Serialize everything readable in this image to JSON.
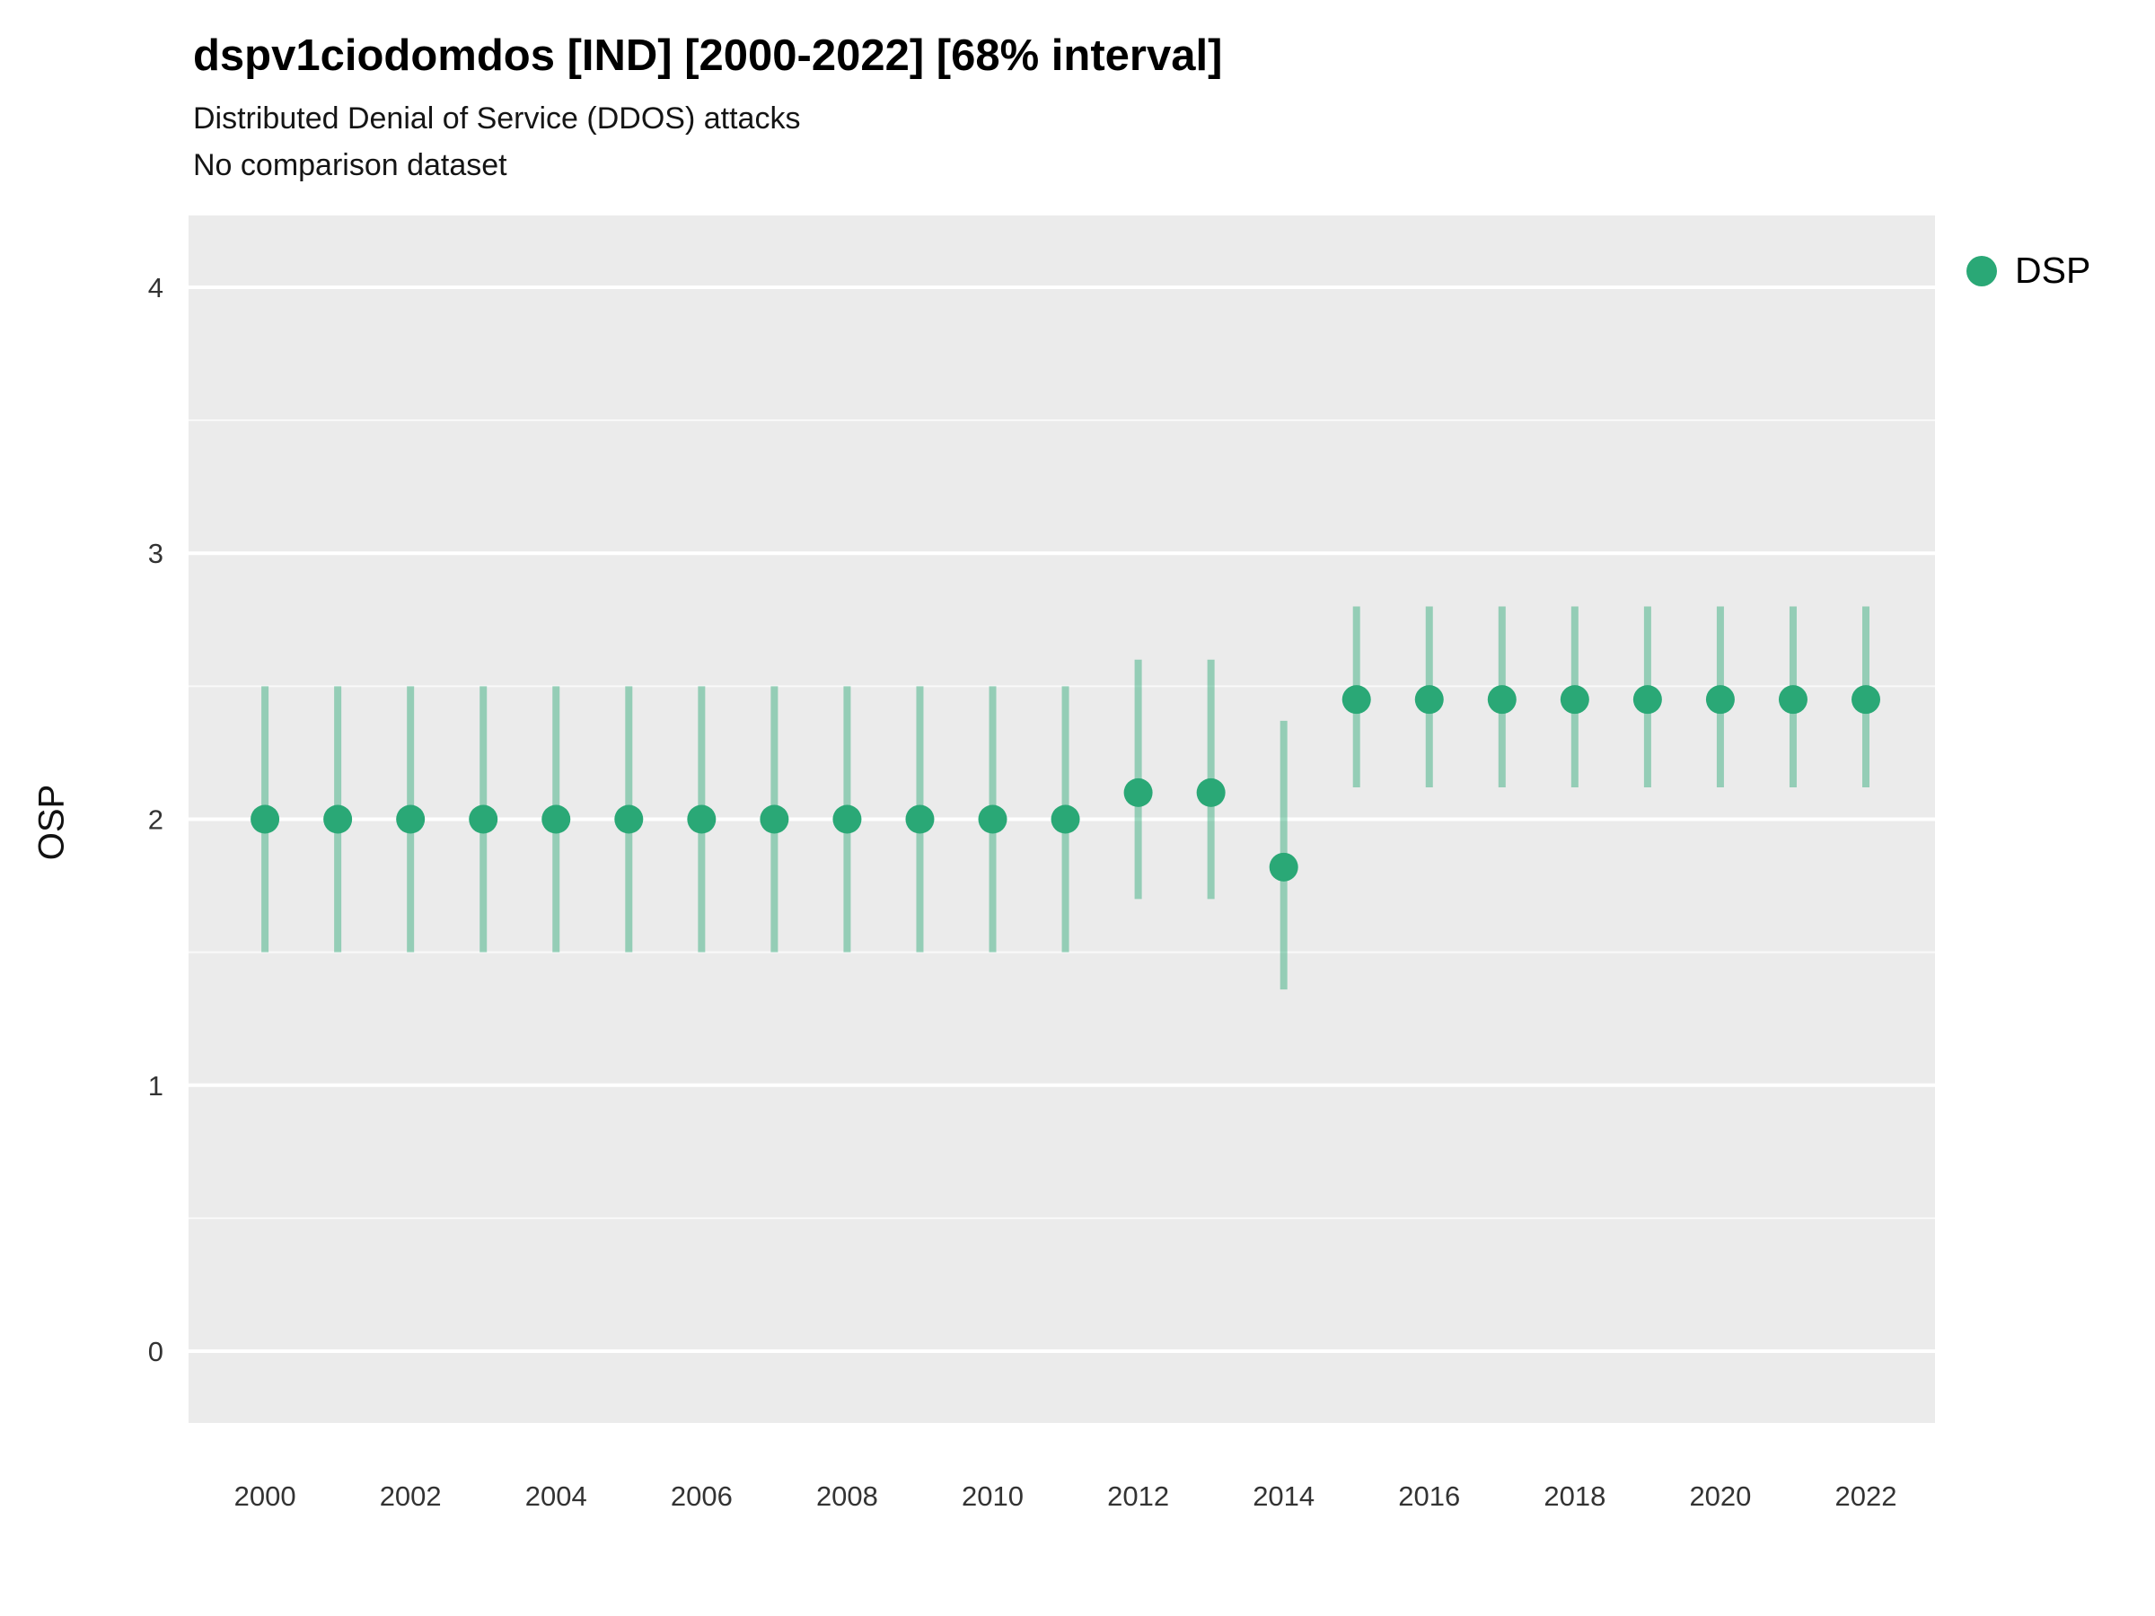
{
  "chart_data": {
    "type": "scatter",
    "title": "dspv1ciodomdos [IND] [2000-2022] [68% interval]",
    "subtitle": "Distributed Denial of Service (DDOS) attacks",
    "note": "No comparison dataset",
    "xlabel": "",
    "ylabel": "OSP",
    "interval": "68%",
    "legend_position": "right",
    "grid": "horizontal-major-and-minor-white",
    "panel_bg": "#ebebeb",
    "grid_color": "#ffffff",
    "tick_label_color": "#333333",
    "xlim": [
      1998.95,
      2022.95
    ],
    "ylim": [
      -0.27,
      4.27
    ],
    "x_ticks": [
      2000,
      2002,
      2004,
      2006,
      2008,
      2010,
      2012,
      2014,
      2016,
      2018,
      2020,
      2022
    ],
    "y_ticks": [
      0,
      1,
      2,
      3,
      4
    ],
    "series": [
      {
        "name": "DSP",
        "color": "#2aa876",
        "interval_opacity": 0.45,
        "points": [
          {
            "x": 2000,
            "y": 2.0,
            "lo": 1.5,
            "hi": 2.5
          },
          {
            "x": 2001,
            "y": 2.0,
            "lo": 1.5,
            "hi": 2.5
          },
          {
            "x": 2002,
            "y": 2.0,
            "lo": 1.5,
            "hi": 2.5
          },
          {
            "x": 2003,
            "y": 2.0,
            "lo": 1.5,
            "hi": 2.5
          },
          {
            "x": 2004,
            "y": 2.0,
            "lo": 1.5,
            "hi": 2.5
          },
          {
            "x": 2005,
            "y": 2.0,
            "lo": 1.5,
            "hi": 2.5
          },
          {
            "x": 2006,
            "y": 2.0,
            "lo": 1.5,
            "hi": 2.5
          },
          {
            "x": 2007,
            "y": 2.0,
            "lo": 1.5,
            "hi": 2.5
          },
          {
            "x": 2008,
            "y": 2.0,
            "lo": 1.5,
            "hi": 2.5
          },
          {
            "x": 2009,
            "y": 2.0,
            "lo": 1.5,
            "hi": 2.5
          },
          {
            "x": 2010,
            "y": 2.0,
            "lo": 1.5,
            "hi": 2.5
          },
          {
            "x": 2011,
            "y": 2.0,
            "lo": 1.5,
            "hi": 2.5
          },
          {
            "x": 2012,
            "y": 2.1,
            "lo": 1.7,
            "hi": 2.6
          },
          {
            "x": 2013,
            "y": 2.1,
            "lo": 1.7,
            "hi": 2.6
          },
          {
            "x": 2014,
            "y": 1.82,
            "lo": 1.36,
            "hi": 2.37
          },
          {
            "x": 2015,
            "y": 2.45,
            "lo": 2.12,
            "hi": 2.8
          },
          {
            "x": 2016,
            "y": 2.45,
            "lo": 2.12,
            "hi": 2.8
          },
          {
            "x": 2017,
            "y": 2.45,
            "lo": 2.12,
            "hi": 2.8
          },
          {
            "x": 2018,
            "y": 2.45,
            "lo": 2.12,
            "hi": 2.8
          },
          {
            "x": 2019,
            "y": 2.45,
            "lo": 2.12,
            "hi": 2.8
          },
          {
            "x": 2020,
            "y": 2.45,
            "lo": 2.12,
            "hi": 2.8
          },
          {
            "x": 2021,
            "y": 2.45,
            "lo": 2.12,
            "hi": 2.8
          },
          {
            "x": 2022,
            "y": 2.45,
            "lo": 2.12,
            "hi": 2.8
          }
        ]
      }
    ]
  }
}
